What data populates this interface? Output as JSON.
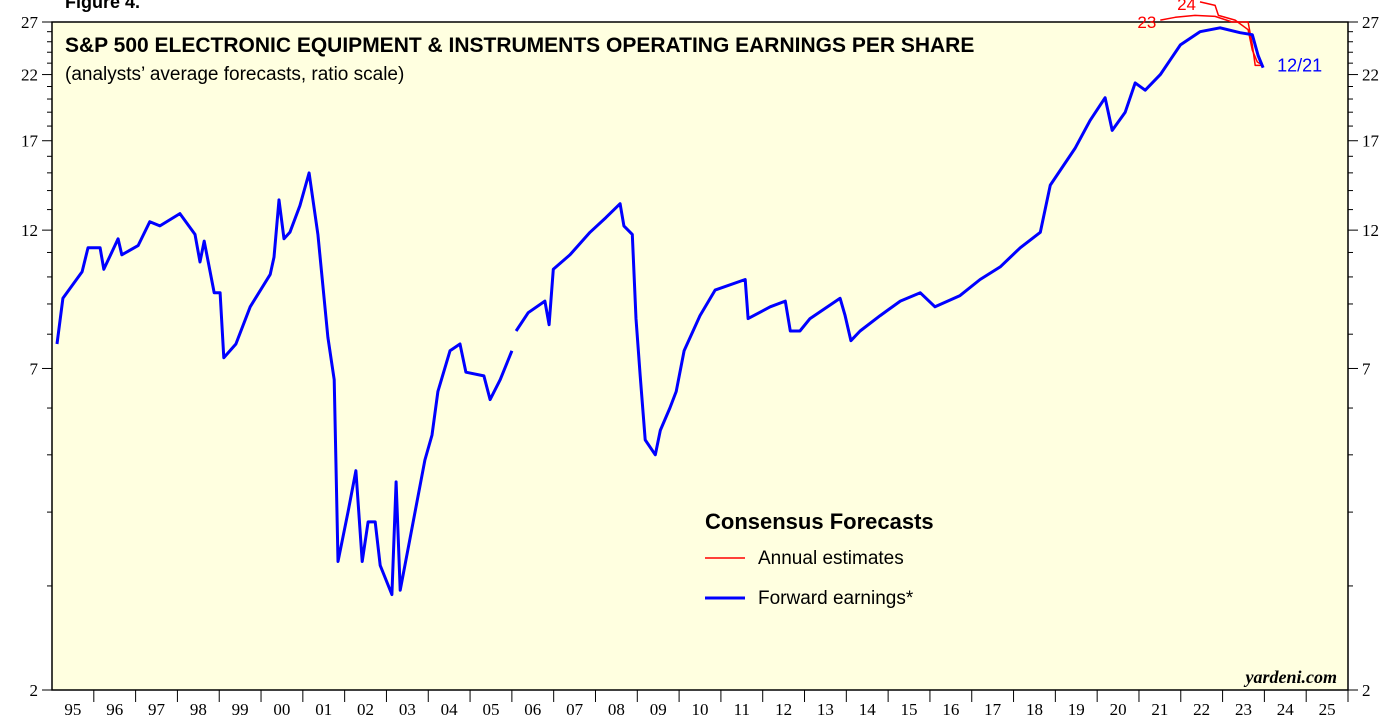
{
  "figure_label": "Figure 4.",
  "chart_data": {
    "type": "line",
    "title": "S&P 500 ELECTRONIC EQUIPMENT & INSTRUMENTS OPERATING EARNINGS PER SHARE",
    "subtitle": "(analysts’ average forecasts, ratio scale)",
    "source": "yardeni.com",
    "annotation": "12/21",
    "legend_title": "Consensus Forecasts",
    "log_scale": true,
    "xlim": [
      1995,
      2026
    ],
    "xticks": [
      {
        "value": 1995.5,
        "label": "95"
      },
      {
        "value": 1996.5,
        "label": "96"
      },
      {
        "value": 1997.5,
        "label": "97"
      },
      {
        "value": 1998.5,
        "label": "98"
      },
      {
        "value": 1999.5,
        "label": "99"
      },
      {
        "value": 2000.5,
        "label": "00"
      },
      {
        "value": 2001.5,
        "label": "01"
      },
      {
        "value": 2002.5,
        "label": "02"
      },
      {
        "value": 2003.5,
        "label": "03"
      },
      {
        "value": 2004.5,
        "label": "04"
      },
      {
        "value": 2005.5,
        "label": "05"
      },
      {
        "value": 2006.5,
        "label": "06"
      },
      {
        "value": 2007.5,
        "label": "07"
      },
      {
        "value": 2008.5,
        "label": "08"
      },
      {
        "value": 2009.5,
        "label": "09"
      },
      {
        "value": 2010.5,
        "label": "10"
      },
      {
        "value": 2011.5,
        "label": "11"
      },
      {
        "value": 2012.5,
        "label": "12"
      },
      {
        "value": 2013.5,
        "label": "13"
      },
      {
        "value": 2014.5,
        "label": "14"
      },
      {
        "value": 2015.5,
        "label": "15"
      },
      {
        "value": 2016.5,
        "label": "16"
      },
      {
        "value": 2017.5,
        "label": "17"
      },
      {
        "value": 2018.5,
        "label": "18"
      },
      {
        "value": 2019.5,
        "label": "19"
      },
      {
        "value": 2020.5,
        "label": "20"
      },
      {
        "value": 2021.5,
        "label": "21"
      },
      {
        "value": 2022.5,
        "label": "22"
      },
      {
        "value": 2023.5,
        "label": "23"
      },
      {
        "value": 2024.5,
        "label": "24"
      },
      {
        "value": 2025.5,
        "label": "25"
      }
    ],
    "ylim": [
      2,
      27
    ],
    "yticks": [
      2,
      7,
      12,
      17,
      22,
      27
    ],
    "yticks_minor": [
      3,
      4,
      5,
      6,
      8,
      9,
      10,
      11,
      13,
      14,
      15,
      16,
      18,
      19,
      20,
      21,
      23,
      24,
      25,
      26
    ],
    "series": [
      {
        "name": "Annual estimates",
        "color": "#ff0000",
        "lines": [
          {
            "label": "23",
            "x": [
              2021.51,
              2021.87,
              2022.34,
              2022.82,
              2023.23,
              2023.61,
              2023.71,
              2023.78,
              2023.95
            ],
            "values": [
              27.2,
              27.5,
              27.7,
              27.6,
              27.0,
              27.0,
              24.7,
              22.8,
              22.8
            ]
          },
          {
            "label": "24",
            "x": [
              2022.46,
              2022.82,
              2022.9,
              2023.3,
              2023.61,
              2023.71,
              2023.83,
              2023.97
            ],
            "values": [
              29.2,
              28.8,
              27.7,
              27.2,
              26.2,
              24.2,
              23.1,
              22.8
            ]
          }
        ]
      },
      {
        "name": "Forward earnings*",
        "color": "#0000ff",
        "x": [
          1995.12,
          1995.26,
          1995.72,
          1995.86,
          1996.15,
          1996.24,
          1996.58,
          1996.67,
          1997.06,
          1997.34,
          1997.58,
          1998.06,
          1998.42,
          1998.54,
          1998.64,
          1998.88,
          1999.02,
          1999.11,
          1999.4,
          1999.74,
          2000.22,
          2000.31,
          2000.43,
          2000.55,
          2000.69,
          2000.93,
          2001.15,
          2001.36,
          2001.6,
          2001.75,
          2001.84,
          2002.08,
          2002.27,
          2002.42,
          2002.56,
          2002.73,
          2002.85,
          2003.13,
          2003.23,
          2003.33,
          2003.56,
          2003.92,
          2004.09,
          2004.23,
          2004.52,
          2004.76,
          2004.9,
          2005.33,
          2005.48,
          2005.72,
          2006.0,
          2006.05,
          2006.1,
          2006.39,
          2006.79,
          2006.89,
          2006.99,
          2007.39,
          2007.87,
          2008.25,
          2008.59,
          2008.68,
          2008.88,
          2008.97,
          2009.07,
          2009.19,
          2009.43,
          2009.55,
          2009.78,
          2009.93,
          2010.12,
          2010.5,
          2010.86,
          2011.58,
          2011.65,
          2012.18,
          2012.54,
          2012.66,
          2012.89,
          2013.13,
          2013.85,
          2013.97,
          2014.11,
          2014.33,
          2014.81,
          2015.29,
          2015.77,
          2016.12,
          2016.72,
          2017.2,
          2017.68,
          2018.16,
          2018.64,
          2018.88,
          2019.47,
          2019.83,
          2020.19,
          2020.36,
          2020.67,
          2020.91,
          2021.15,
          2021.51,
          2021.75,
          2021.99,
          2022.46,
          2022.94,
          2023.42,
          2023.71,
          2023.85,
          2023.97
        ],
        "values": [
          7.7,
          9.2,
          10.2,
          11.2,
          11.2,
          10.3,
          11.6,
          10.9,
          11.3,
          12.4,
          12.2,
          12.8,
          11.8,
          10.6,
          11.5,
          9.4,
          9.4,
          7.3,
          7.7,
          8.9,
          10.1,
          10.8,
          13.5,
          11.6,
          11.9,
          13.2,
          15.0,
          11.8,
          7.9,
          6.7,
          3.3,
          4.0,
          4.7,
          3.3,
          3.85,
          3.85,
          3.25,
          2.9,
          4.5,
          2.95,
          3.6,
          4.9,
          5.4,
          6.4,
          7.5,
          7.7,
          6.9,
          6.8,
          6.2,
          6.7,
          7.5,
          null,
          8.1,
          8.7,
          9.1,
          8.3,
          10.3,
          10.9,
          11.9,
          12.6,
          13.3,
          12.2,
          11.8,
          8.5,
          6.8,
          5.3,
          5.0,
          5.5,
          6.0,
          6.4,
          7.5,
          8.6,
          9.5,
          9.9,
          8.5,
          8.9,
          9.1,
          8.1,
          8.1,
          8.5,
          9.2,
          8.6,
          7.8,
          8.1,
          8.6,
          9.1,
          9.4,
          8.9,
          9.3,
          9.9,
          10.4,
          11.2,
          11.9,
          14.3,
          16.5,
          18.4,
          20.1,
          17.7,
          19.0,
          21.3,
          20.7,
          22.0,
          23.3,
          24.7,
          26.0,
          26.4,
          25.9,
          25.7,
          23.7,
          22.6
        ]
      }
    ]
  }
}
